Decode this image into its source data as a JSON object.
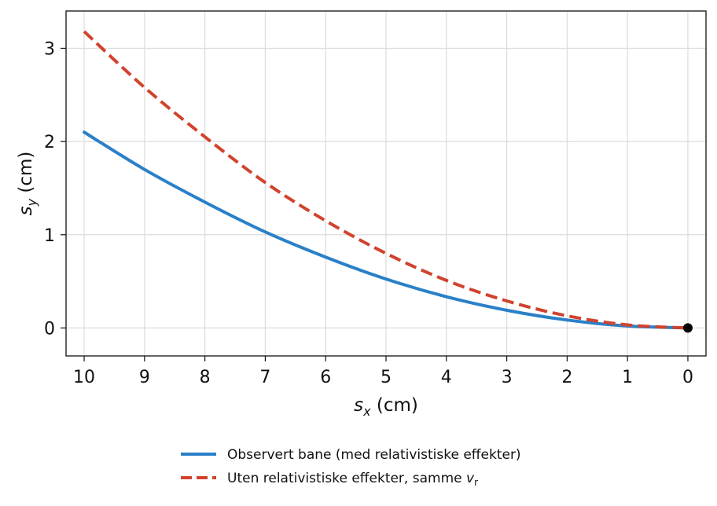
{
  "chart_data": {
    "type": "line",
    "xlabel_main": "s",
    "xlabel_sub": "x",
    "xlabel_unit": " (cm)",
    "ylabel_main": "s",
    "ylabel_sub": "y",
    "ylabel_unit": " (cm)",
    "x_inverted": true,
    "xlim": [
      10.3,
      -0.3
    ],
    "ylim": [
      -0.3,
      3.4
    ],
    "xticks": [
      "10",
      "9",
      "8",
      "7",
      "6",
      "5",
      "4",
      "3",
      "2",
      "1",
      "0"
    ],
    "yticks": [
      "0",
      "1",
      "2",
      "3"
    ],
    "grid": true,
    "legend_position": "bottom-center",
    "series": [
      {
        "name": "Observert bane (med relativistiske effekter)",
        "color": "#2a80c8",
        "style": "solid",
        "x": [
          10,
          9,
          8,
          7,
          6,
          5,
          4,
          3,
          2,
          1,
          0
        ],
        "y": [
          2.1,
          1.7,
          1.35,
          1.03,
          0.76,
          0.525,
          0.335,
          0.19,
          0.085,
          0.021,
          0
        ]
      },
      {
        "name_main": "Uten relativistiske effekter, samme ",
        "name_var": "v",
        "name_sub": "r",
        "color": "#d0432e",
        "style": "dashed",
        "x": [
          10,
          9,
          8,
          7,
          6,
          5,
          4,
          3,
          2,
          1,
          0
        ],
        "y": [
          3.18,
          2.58,
          2.05,
          1.56,
          1.15,
          0.8,
          0.51,
          0.29,
          0.13,
          0.033,
          0
        ]
      }
    ],
    "marker": {
      "x": 0,
      "y": 0,
      "color": "#000000"
    }
  }
}
